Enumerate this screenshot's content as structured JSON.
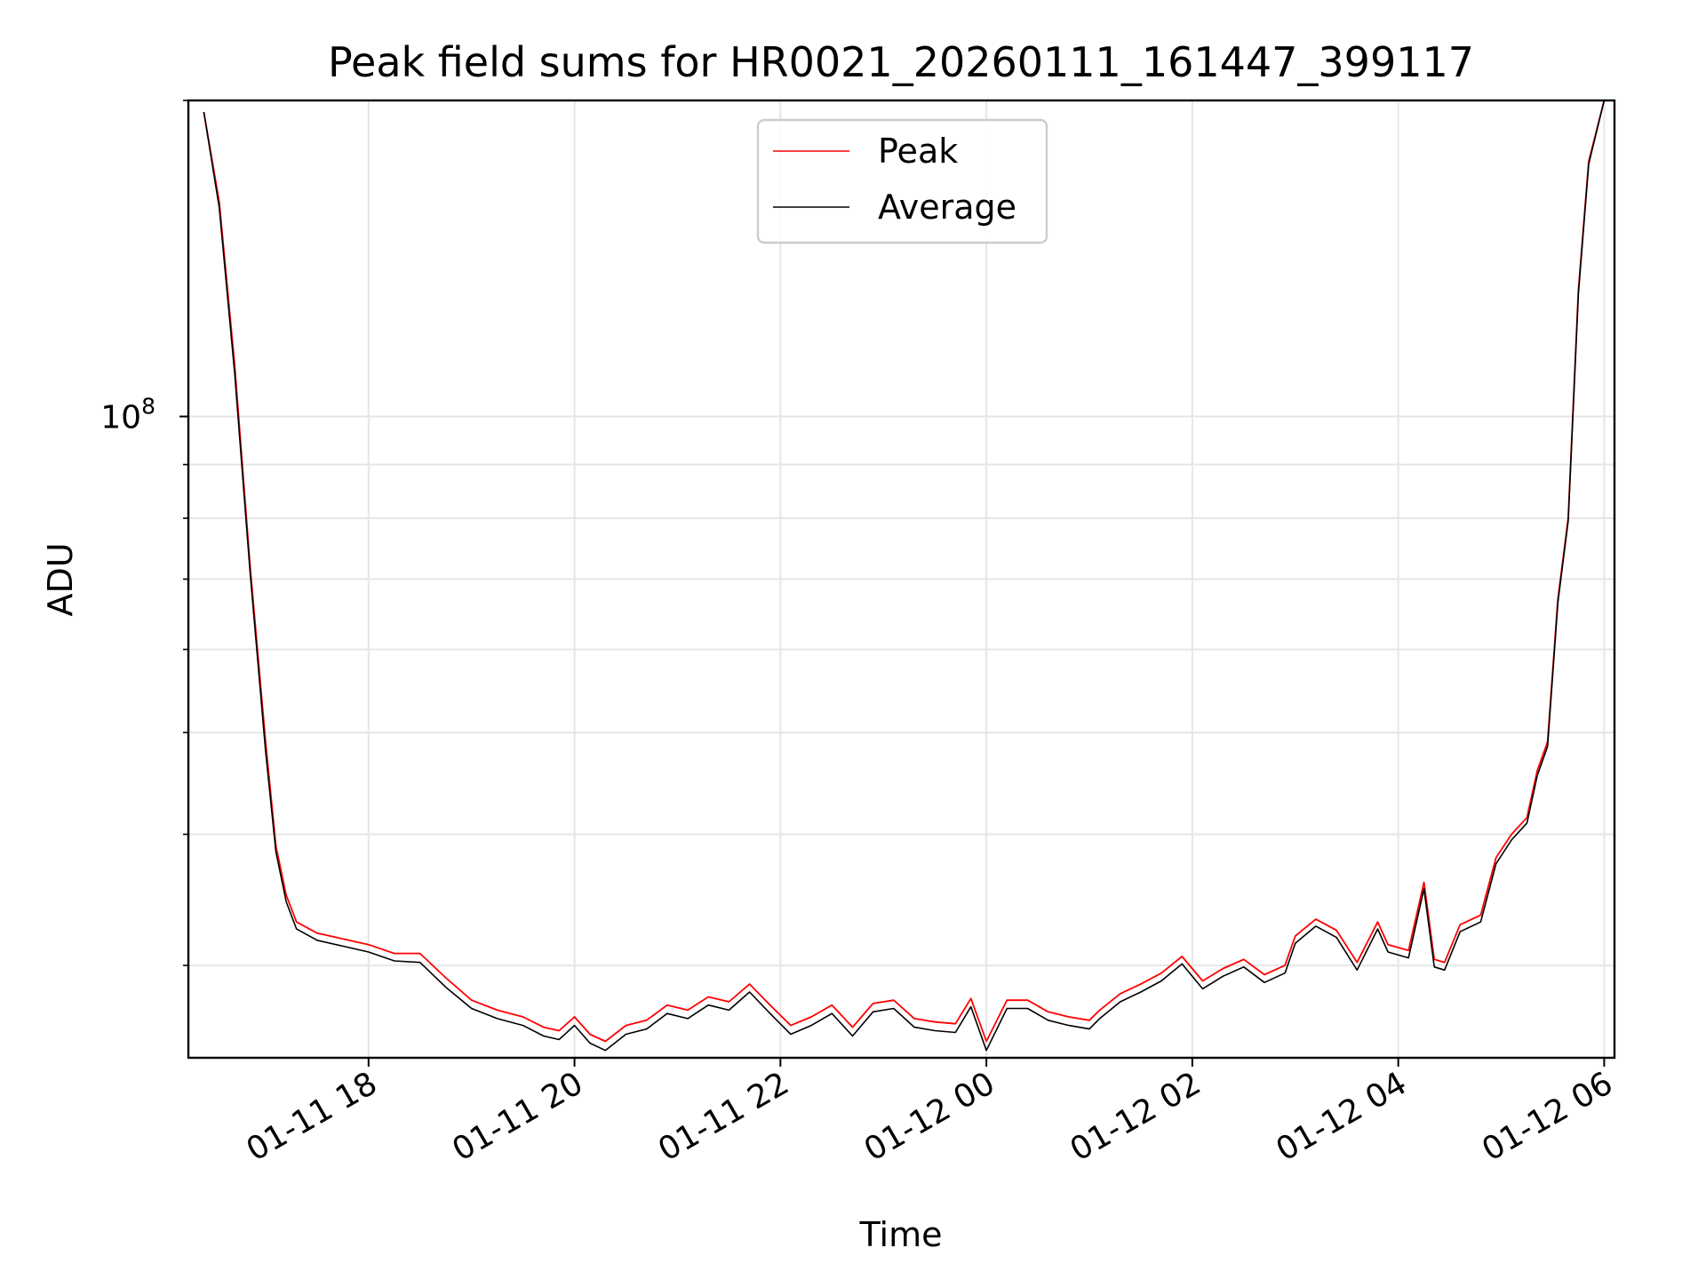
{
  "chart_data": {
    "type": "line",
    "title": "Peak field sums for HR0021_20260111_161447_399117",
    "xlabel": "Time",
    "ylabel": "ADU",
    "yscale": "log",
    "grid": true,
    "legend_position": "upper-center",
    "x_units": "hours since 2026-01-11 00:00",
    "xlim": [
      16.25,
      30.1
    ],
    "ylim": [
      24500000.0,
      200000000.0
    ],
    "x_ticks": [
      {
        "value": 18,
        "label": "01-11 18"
      },
      {
        "value": 20,
        "label": "01-11 20"
      },
      {
        "value": 22,
        "label": "01-11 22"
      },
      {
        "value": 24,
        "label": "01-12 00"
      },
      {
        "value": 26,
        "label": "01-12 02"
      },
      {
        "value": 28,
        "label": "01-12 04"
      },
      {
        "value": 30,
        "label": "01-12 06"
      }
    ],
    "y_major_tick": {
      "value": 100000000,
      "label_base": "10",
      "label_exp": "8"
    },
    "y_minor_ticks": [
      30000000,
      40000000,
      50000000,
      60000000,
      70000000,
      80000000,
      90000000,
      200000000
    ],
    "series": [
      {
        "name": "Peak",
        "color": "#ff0000",
        "x": [
          16.4,
          16.55,
          16.7,
          16.85,
          17.0,
          17.1,
          17.2,
          17.3,
          17.5,
          17.75,
          18.0,
          18.25,
          18.5,
          18.75,
          19.0,
          19.25,
          19.5,
          19.7,
          19.85,
          20.0,
          20.15,
          20.3,
          20.5,
          20.7,
          20.9,
          21.1,
          21.3,
          21.5,
          21.7,
          21.9,
          22.1,
          22.3,
          22.5,
          22.7,
          22.9,
          23.1,
          23.3,
          23.5,
          23.7,
          23.85,
          24.0,
          24.2,
          24.4,
          24.6,
          24.8,
          25.0,
          25.1,
          25.3,
          25.5,
          25.7,
          25.9,
          26.1,
          26.3,
          26.5,
          26.7,
          26.9,
          27.0,
          27.2,
          27.4,
          27.6,
          27.8,
          27.9,
          28.1,
          28.25,
          28.35,
          28.45,
          28.6,
          28.8,
          28.95,
          29.1,
          29.25,
          29.35,
          29.45,
          29.55,
          29.65,
          29.75,
          29.85,
          30.0
        ],
        "values": [
          195000000,
          160000000,
          112000000,
          72000000,
          49000000,
          39000000,
          35000000,
          33000000,
          32200000,
          31800000,
          31400000,
          30800000,
          30800000,
          29200000,
          27800000,
          27200000,
          26800000,
          26200000,
          26000000,
          26800000,
          25800000,
          25400000,
          26300000,
          26600000,
          27500000,
          27200000,
          28000000,
          27700000,
          28800000,
          27500000,
          26300000,
          26800000,
          27500000,
          26200000,
          27600000,
          27800000,
          26700000,
          26500000,
          26400000,
          27900000,
          25400000,
          27800000,
          27800000,
          27100000,
          26800000,
          26600000,
          27200000,
          28200000,
          28800000,
          29500000,
          30600000,
          29000000,
          29800000,
          30400000,
          29400000,
          30000000,
          32000000,
          33200000,
          32400000,
          30200000,
          33000000,
          31400000,
          31000000,
          36000000,
          30400000,
          30200000,
          32800000,
          33500000,
          38000000,
          40000000,
          41500000,
          46000000,
          49000000,
          67000000,
          80000000,
          132000000,
          175000000,
          200000000
        ]
      },
      {
        "name": "Average",
        "color": "#000000",
        "x": [
          16.4,
          16.55,
          16.7,
          16.85,
          17.0,
          17.1,
          17.2,
          17.3,
          17.5,
          17.75,
          18.0,
          18.25,
          18.5,
          18.75,
          19.0,
          19.25,
          19.5,
          19.7,
          19.85,
          20.0,
          20.15,
          20.3,
          20.5,
          20.7,
          20.9,
          21.1,
          21.3,
          21.5,
          21.7,
          21.9,
          22.1,
          22.3,
          22.5,
          22.7,
          22.9,
          23.1,
          23.3,
          23.5,
          23.7,
          23.85,
          24.0,
          24.2,
          24.4,
          24.6,
          24.8,
          25.0,
          25.1,
          25.3,
          25.5,
          25.7,
          25.9,
          26.1,
          26.3,
          26.5,
          26.7,
          26.9,
          27.0,
          27.2,
          27.4,
          27.6,
          27.8,
          27.9,
          28.1,
          28.25,
          28.35,
          28.45,
          28.6,
          28.8,
          28.95,
          29.1,
          29.25,
          29.35,
          29.45,
          29.55,
          29.65,
          29.75,
          29.85,
          30.0
        ],
        "values": [
          195000000,
          158000000,
          110000000,
          71000000,
          48000000,
          38500000,
          34500000,
          32500000,
          31700000,
          31300000,
          30900000,
          30300000,
          30200000,
          28600000,
          27300000,
          26700000,
          26300000,
          25700000,
          25500000,
          26300000,
          25300000,
          24900000,
          25800000,
          26100000,
          27000000,
          26700000,
          27500000,
          27200000,
          28300000,
          27000000,
          25800000,
          26300000,
          27000000,
          25700000,
          27100000,
          27300000,
          26200000,
          26000000,
          25900000,
          27400000,
          24900000,
          27300000,
          27300000,
          26600000,
          26300000,
          26100000,
          26700000,
          27700000,
          28300000,
          29000000,
          30100000,
          28500000,
          29300000,
          29900000,
          28900000,
          29500000,
          31500000,
          32700000,
          31900000,
          29700000,
          32500000,
          30900000,
          30500000,
          35500000,
          29900000,
          29700000,
          32300000,
          33000000,
          37500000,
          39500000,
          41000000,
          45500000,
          48500000,
          66500000,
          79500000,
          131000000,
          174000000,
          200000000
        ]
      }
    ]
  }
}
